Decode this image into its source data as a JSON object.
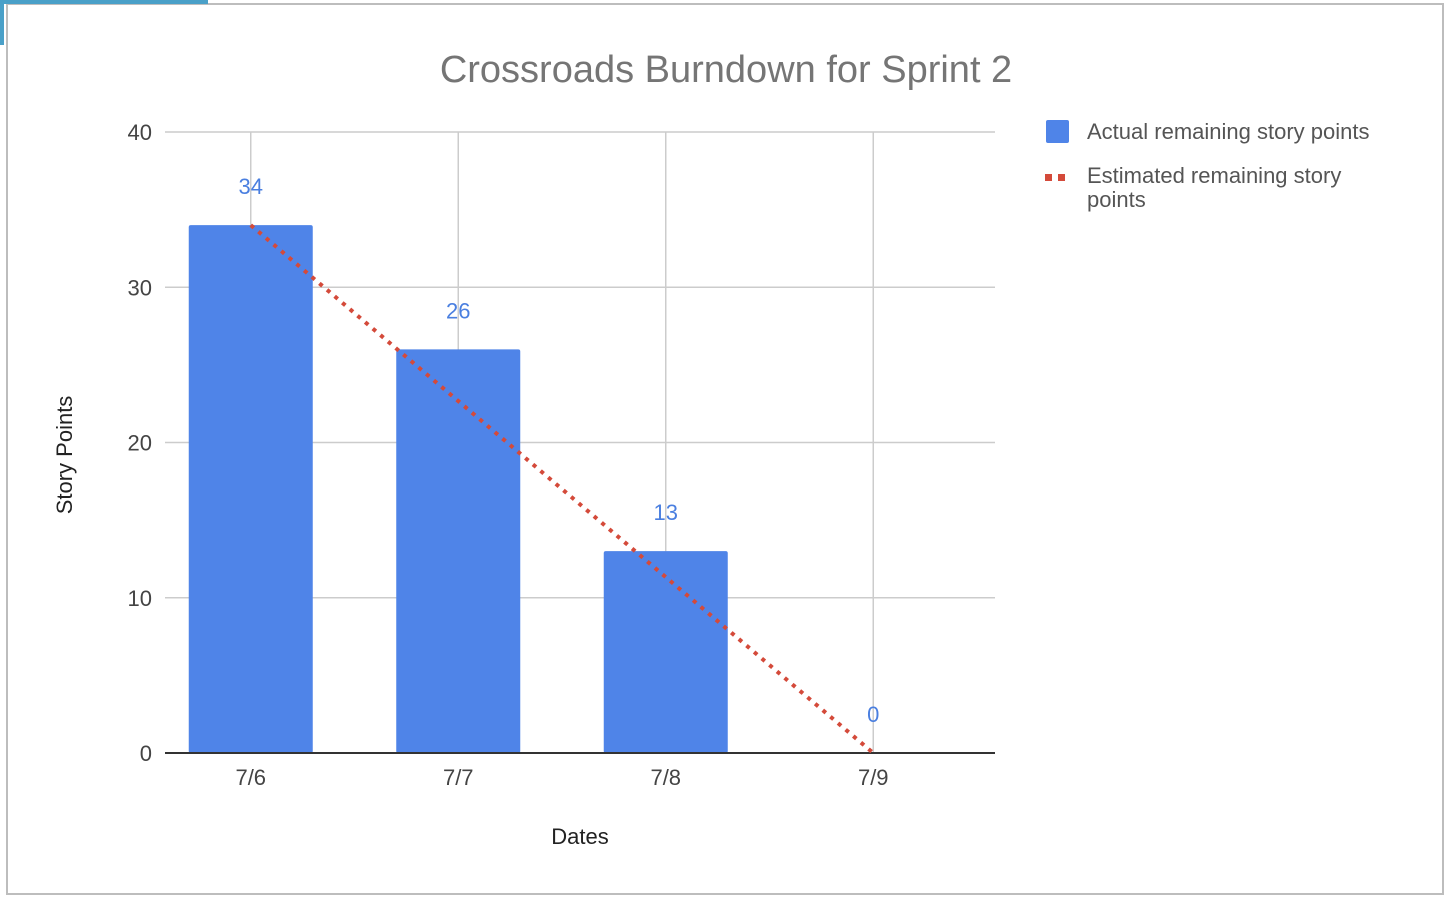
{
  "chart_data": {
    "type": "bar",
    "title": "Crossroads Burndown for Sprint 2",
    "xlabel": "Dates",
    "ylabel": "Story Points",
    "categories": [
      "7/6",
      "7/7",
      "7/8",
      "7/9"
    ],
    "ylim": [
      0,
      40
    ],
    "yticks": [
      "0",
      "10",
      "20",
      "30",
      "40"
    ],
    "grid": true,
    "legend_position": "right",
    "series": [
      {
        "name": "Actual remaining story points",
        "type": "bar",
        "values": [
          34,
          26,
          13,
          0
        ],
        "data_labels": [
          "34",
          "26",
          "13",
          "0"
        ],
        "color": "#4f84e8"
      },
      {
        "name": "Estimated remaining story points",
        "type": "line",
        "style": "dotted",
        "values": [
          34,
          22.67,
          11.33,
          0
        ],
        "color": "#d44a3a"
      }
    ]
  },
  "colors": {
    "label": "#4a7fe0",
    "grid": "#cccccc",
    "axis": "#333333"
  }
}
